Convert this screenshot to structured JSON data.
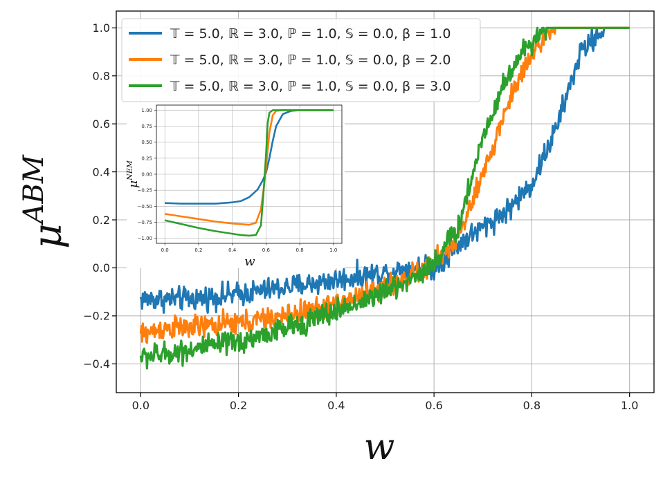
{
  "chart_data": [
    {
      "type": "line",
      "xlabel": "w",
      "ylabel_base": "μ",
      "ylabel_sup": "ABM",
      "xlim": [
        -0.05,
        1.05
      ],
      "ylim": [
        -0.52,
        1.07
      ],
      "xticks": [
        0.0,
        0.2,
        0.4,
        0.6,
        0.8,
        1.0
      ],
      "xtick_labels": [
        "0.0",
        "0.2",
        "0.4",
        "0.6",
        "0.8",
        "1.0"
      ],
      "yticks": [
        -0.4,
        -0.2,
        0.0,
        0.2,
        0.4,
        0.6,
        0.8,
        1.0
      ],
      "ytick_labels": [
        "−0.4",
        "−0.2",
        "0.0",
        "0.2",
        "0.4",
        "0.6",
        "0.8",
        "1.0"
      ],
      "grid": true,
      "legend_position": "top-center",
      "series": [
        {
          "name": "β = 1.0",
          "legend_label": "𝕋 = 5.0, ℝ = 3.0, ℙ = 1.0, 𝕊 = 0.0, β = 1.0",
          "color": "#1f77b4",
          "noise": 0.022,
          "x": [
            0.0,
            0.1,
            0.2,
            0.3,
            0.4,
            0.5,
            0.55,
            0.6,
            0.65,
            0.7,
            0.75,
            0.8,
            0.85,
            0.9,
            0.95,
            1.0
          ],
          "y": [
            -0.13,
            -0.13,
            -0.11,
            -0.08,
            -0.05,
            -0.02,
            0.0,
            0.0,
            0.1,
            0.17,
            0.24,
            0.35,
            0.58,
            0.9,
            1.0,
            1.0
          ]
        },
        {
          "name": "β = 2.0",
          "legend_label": "𝕋 = 5.0, ℝ = 3.0, ℙ = 1.0, 𝕊 = 0.0, β = 2.0",
          "color": "#ff7f0e",
          "noise": 0.022,
          "x": [
            0.0,
            0.05,
            0.1,
            0.2,
            0.3,
            0.4,
            0.5,
            0.55,
            0.6,
            0.65,
            0.7,
            0.75,
            0.8,
            0.85,
            0.9,
            1.0
          ],
          "y": [
            -0.28,
            -0.25,
            -0.25,
            -0.23,
            -0.2,
            -0.15,
            -0.08,
            -0.04,
            0.02,
            0.13,
            0.38,
            0.68,
            0.9,
            1.0,
            1.0,
            1.0
          ]
        },
        {
          "name": "β = 3.0",
          "legend_label": "𝕋 = 5.0, ℝ = 3.0, ℙ = 1.0, 𝕊 = 0.0, β = 3.0",
          "color": "#2ca02c",
          "noise": 0.022,
          "x": [
            0.0,
            0.05,
            0.1,
            0.2,
            0.3,
            0.4,
            0.5,
            0.55,
            0.6,
            0.65,
            0.7,
            0.75,
            0.8,
            0.83,
            0.88,
            1.0
          ],
          "y": [
            -0.37,
            -0.36,
            -0.34,
            -0.31,
            -0.25,
            -0.18,
            -0.1,
            -0.05,
            0.02,
            0.17,
            0.55,
            0.8,
            0.95,
            1.0,
            1.0,
            1.0
          ]
        }
      ]
    },
    {
      "type": "line",
      "role": "inset",
      "xlabel": "w",
      "ylabel_base": "μ",
      "ylabel_sup": "NEM",
      "xlim": [
        -0.05,
        1.05
      ],
      "ylim": [
        -1.08,
        1.08
      ],
      "xticks": [
        0.0,
        0.2,
        0.4,
        0.6,
        0.8,
        1.0
      ],
      "xtick_labels": [
        "0.0",
        "0.2",
        "0.4",
        "0.6",
        "0.8",
        "1.0"
      ],
      "yticks": [
        -1.0,
        -0.75,
        -0.5,
        -0.25,
        0.0,
        0.25,
        0.5,
        0.75,
        1.0
      ],
      "ytick_labels": [
        "−1.00",
        "−0.75",
        "−0.50",
        "−0.25",
        "0.00",
        "0.25",
        "0.50",
        "0.75",
        "1.00"
      ],
      "grid": true,
      "series": [
        {
          "name": "β = 1.0",
          "color": "#1f77b4",
          "x": [
            0.0,
            0.1,
            0.2,
            0.3,
            0.4,
            0.45,
            0.5,
            0.55,
            0.58,
            0.6,
            0.62,
            0.64,
            0.66,
            0.7,
            0.75,
            0.8,
            1.0
          ],
          "y": [
            -0.45,
            -0.46,
            -0.46,
            -0.46,
            -0.44,
            -0.42,
            -0.36,
            -0.24,
            -0.1,
            0.02,
            0.25,
            0.52,
            0.75,
            0.94,
            0.99,
            1.0,
            1.0
          ]
        },
        {
          "name": "β = 2.0",
          "color": "#ff7f0e",
          "x": [
            0.0,
            0.1,
            0.2,
            0.3,
            0.4,
            0.45,
            0.5,
            0.54,
            0.57,
            0.59,
            0.6,
            0.62,
            0.64,
            0.66,
            0.7,
            1.0
          ],
          "y": [
            -0.62,
            -0.66,
            -0.7,
            -0.74,
            -0.77,
            -0.78,
            -0.79,
            -0.76,
            -0.55,
            -0.15,
            0.1,
            0.65,
            0.92,
            0.99,
            1.0,
            1.0
          ]
        },
        {
          "name": "β = 3.0",
          "color": "#2ca02c",
          "x": [
            0.0,
            0.1,
            0.2,
            0.3,
            0.4,
            0.45,
            0.5,
            0.54,
            0.57,
            0.585,
            0.6,
            0.61,
            0.62,
            0.64,
            0.7,
            1.0
          ],
          "y": [
            -0.72,
            -0.78,
            -0.84,
            -0.89,
            -0.93,
            -0.95,
            -0.96,
            -0.95,
            -0.8,
            -0.3,
            0.3,
            0.8,
            0.96,
            1.0,
            1.0,
            1.0
          ]
        }
      ]
    }
  ]
}
